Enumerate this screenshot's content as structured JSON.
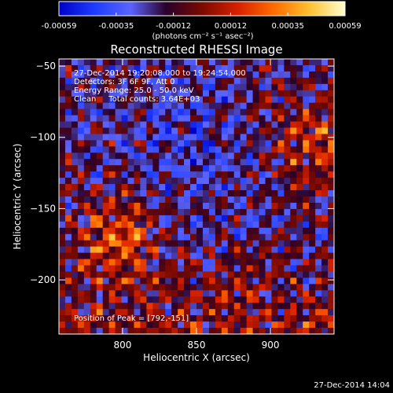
{
  "chart_data": {
    "type": "heatmap",
    "title": "Reconstructed RHESSI Image",
    "xlabel": "Heliocentric X (arcsec)",
    "ylabel": "Heliocentric Y (arcsec)",
    "xlim": [
      757,
      943
    ],
    "ylim": [
      -238,
      -45
    ],
    "x_ticks": [
      800,
      850,
      900
    ],
    "y_ticks": [
      -50,
      -100,
      -150,
      -200
    ],
    "colorbar": {
      "unit_label": "(photons cm⁻² s⁻¹ asec⁻²)",
      "ticks": [
        "-0.00059",
        "-0.00035",
        "-0.00012",
        "0.00012",
        "0.00035",
        "0.00059"
      ],
      "range": [
        -0.00059,
        0.00059
      ],
      "colors": [
        "#0000c8",
        "#1e3cff",
        "#5a64ff",
        "#2a002a",
        "#7a0a00",
        "#d82000",
        "#ff6a00",
        "#ffc030",
        "#ffffd0"
      ]
    },
    "annotations": [
      "27-Dec-2014 19:20:08.000 to 19:24:54.000",
      "Detectors: 3F 6F 9F, Att 0",
      "Energy Range: 25.0 - 50.0 keV",
      "Clean     Total counts: 3.64E+03"
    ],
    "peak": {
      "label": "Position of Peak = [792,-151]",
      "x": 792,
      "y": -151
    },
    "footer_date": "27-Dec-2014 14:04"
  }
}
